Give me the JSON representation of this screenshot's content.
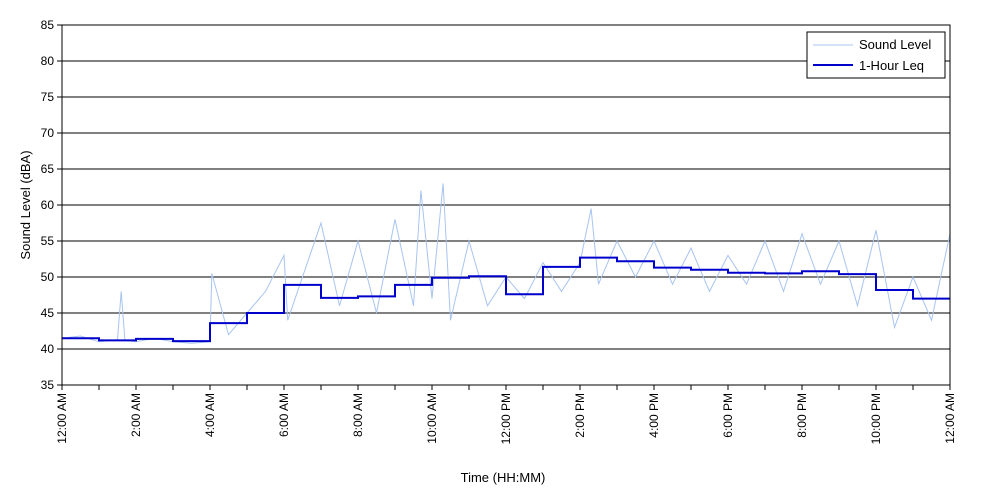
{
  "chart_data": {
    "type": "line",
    "title": "",
    "xlabel": "Time (HH:MM)",
    "ylabel": "Sound Level (dBA)",
    "xlim": [
      0,
      24
    ],
    "ylim": [
      35,
      85
    ],
    "yticks": [
      35,
      40,
      45,
      50,
      55,
      60,
      65,
      70,
      75,
      80,
      85
    ],
    "xtick_labels": [
      "12:00 AM",
      "2:00 AM",
      "4:00 AM",
      "6:00 AM",
      "8:00 AM",
      "10:00 AM",
      "12:00 PM",
      "2:00 PM",
      "4:00 PM",
      "6:00 PM",
      "8:00 PM",
      "10:00 PM",
      "12:00 AM"
    ],
    "grid": "horizontal",
    "legend_position": "top-right",
    "colors": {
      "sound_level": "#a8c4f0",
      "leq": "#0000cc"
    },
    "series": [
      {
        "name": "Sound Level",
        "style": "thin light-blue line",
        "x": [
          0,
          0.5,
          1,
          1.5,
          1.6,
          1.7,
          2,
          2.5,
          3,
          3.5,
          4,
          4.05,
          4.5,
          5,
          5.5,
          6,
          6.1,
          6.5,
          7,
          7.5,
          8,
          8.5,
          9,
          9.5,
          9.7,
          10,
          10.3,
          10.5,
          11,
          11.5,
          12,
          12.5,
          13,
          13.5,
          14,
          14.3,
          14.5,
          15,
          15.5,
          16,
          16.5,
          17,
          17.5,
          18,
          18.5,
          19,
          19.5,
          20,
          20.5,
          21,
          21.5,
          22,
          22.5,
          23,
          23.5,
          24
        ],
        "values": [
          41.5,
          41.8,
          41.0,
          41.3,
          48.0,
          41.2,
          41.0,
          41.5,
          41.0,
          40.8,
          41.0,
          50.5,
          42.0,
          45.0,
          48.0,
          53.0,
          44.0,
          50.0,
          57.5,
          46.0,
          55.0,
          45.0,
          58.0,
          46.0,
          62.0,
          47.0,
          63.0,
          44.0,
          55.0,
          46.0,
          50.0,
          47.0,
          52.0,
          48.0,
          52.0,
          59.5,
          49.0,
          55.0,
          50.0,
          55.0,
          49.0,
          54.0,
          48.0,
          53.0,
          49.0,
          55.0,
          48.0,
          56.0,
          49.0,
          55.0,
          46.0,
          56.5,
          43.0,
          50.0,
          44.0,
          56.0
        ]
      },
      {
        "name": "1-Hour Leq",
        "style": "thick dark-blue step line",
        "hours": [
          0,
          1,
          2,
          3,
          4,
          5,
          6,
          7,
          8,
          9,
          10,
          11,
          12,
          13,
          14,
          15,
          16,
          17,
          18,
          19,
          20,
          21,
          22,
          23
        ],
        "values": [
          41.5,
          41.2,
          41.4,
          41.1,
          43.6,
          45.0,
          48.9,
          47.1,
          47.3,
          48.9,
          49.9,
          50.1,
          47.6,
          51.4,
          52.7,
          52.2,
          51.3,
          51.0,
          50.6,
          50.5,
          50.8,
          50.4,
          48.2,
          47.0
        ]
      }
    ]
  }
}
